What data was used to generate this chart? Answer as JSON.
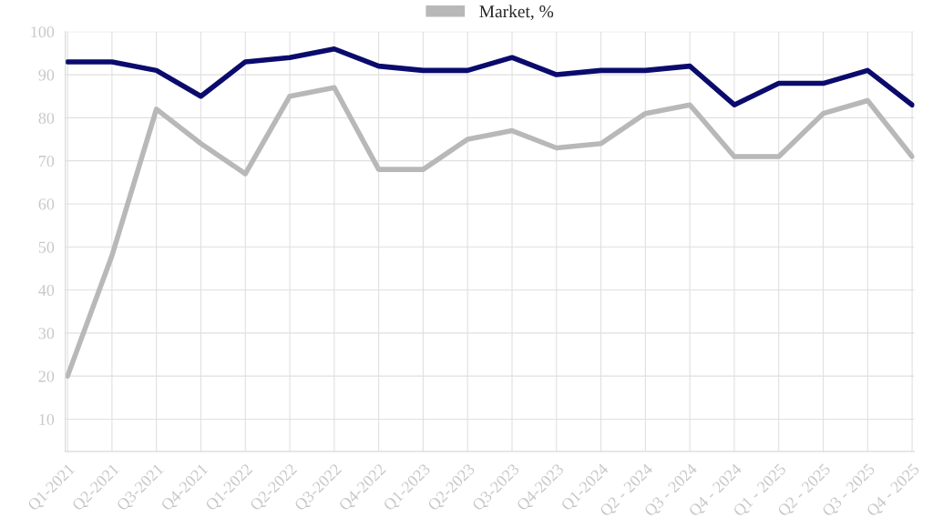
{
  "chart_data": {
    "type": "line",
    "categories": [
      "Q1-2021",
      "Q2-2021",
      "Q3-2021",
      "Q4-2021",
      "Q1-2022",
      "Q2-2022",
      "Q3-2022",
      "Q4-2022",
      "Q1-2023",
      "Q2-2023",
      "Q3-2023",
      "Q4-2023",
      "Q1-2024",
      "Q2 - 2024",
      "Q3 - 2024",
      "Q4 - 2024",
      "Q1 - 2025",
      "Q2 - 2025",
      "Q3 - 2025",
      "Q4 - 2025"
    ],
    "series": [
      {
        "color": "#0b0b6e",
        "values": [
          93,
          93,
          91,
          85,
          93,
          94,
          96,
          92,
          91,
          91,
          94,
          90,
          91,
          91,
          92,
          83,
          88,
          88,
          91,
          83
        ]
      },
      {
        "name": "Market, %",
        "color": "#b8b8b8",
        "values": [
          20,
          48,
          82,
          74,
          67,
          85,
          87,
          68,
          68,
          75,
          77,
          73,
          74,
          81,
          83,
          71,
          71,
          81,
          84,
          71
        ]
      }
    ],
    "ylim": [
      2.5,
      100
    ],
    "yticks": [
      10,
      20,
      30,
      40,
      50,
      60,
      70,
      80,
      90,
      100
    ],
    "grid": true,
    "legend": "top",
    "marker": "none",
    "line_style": "solid"
  }
}
